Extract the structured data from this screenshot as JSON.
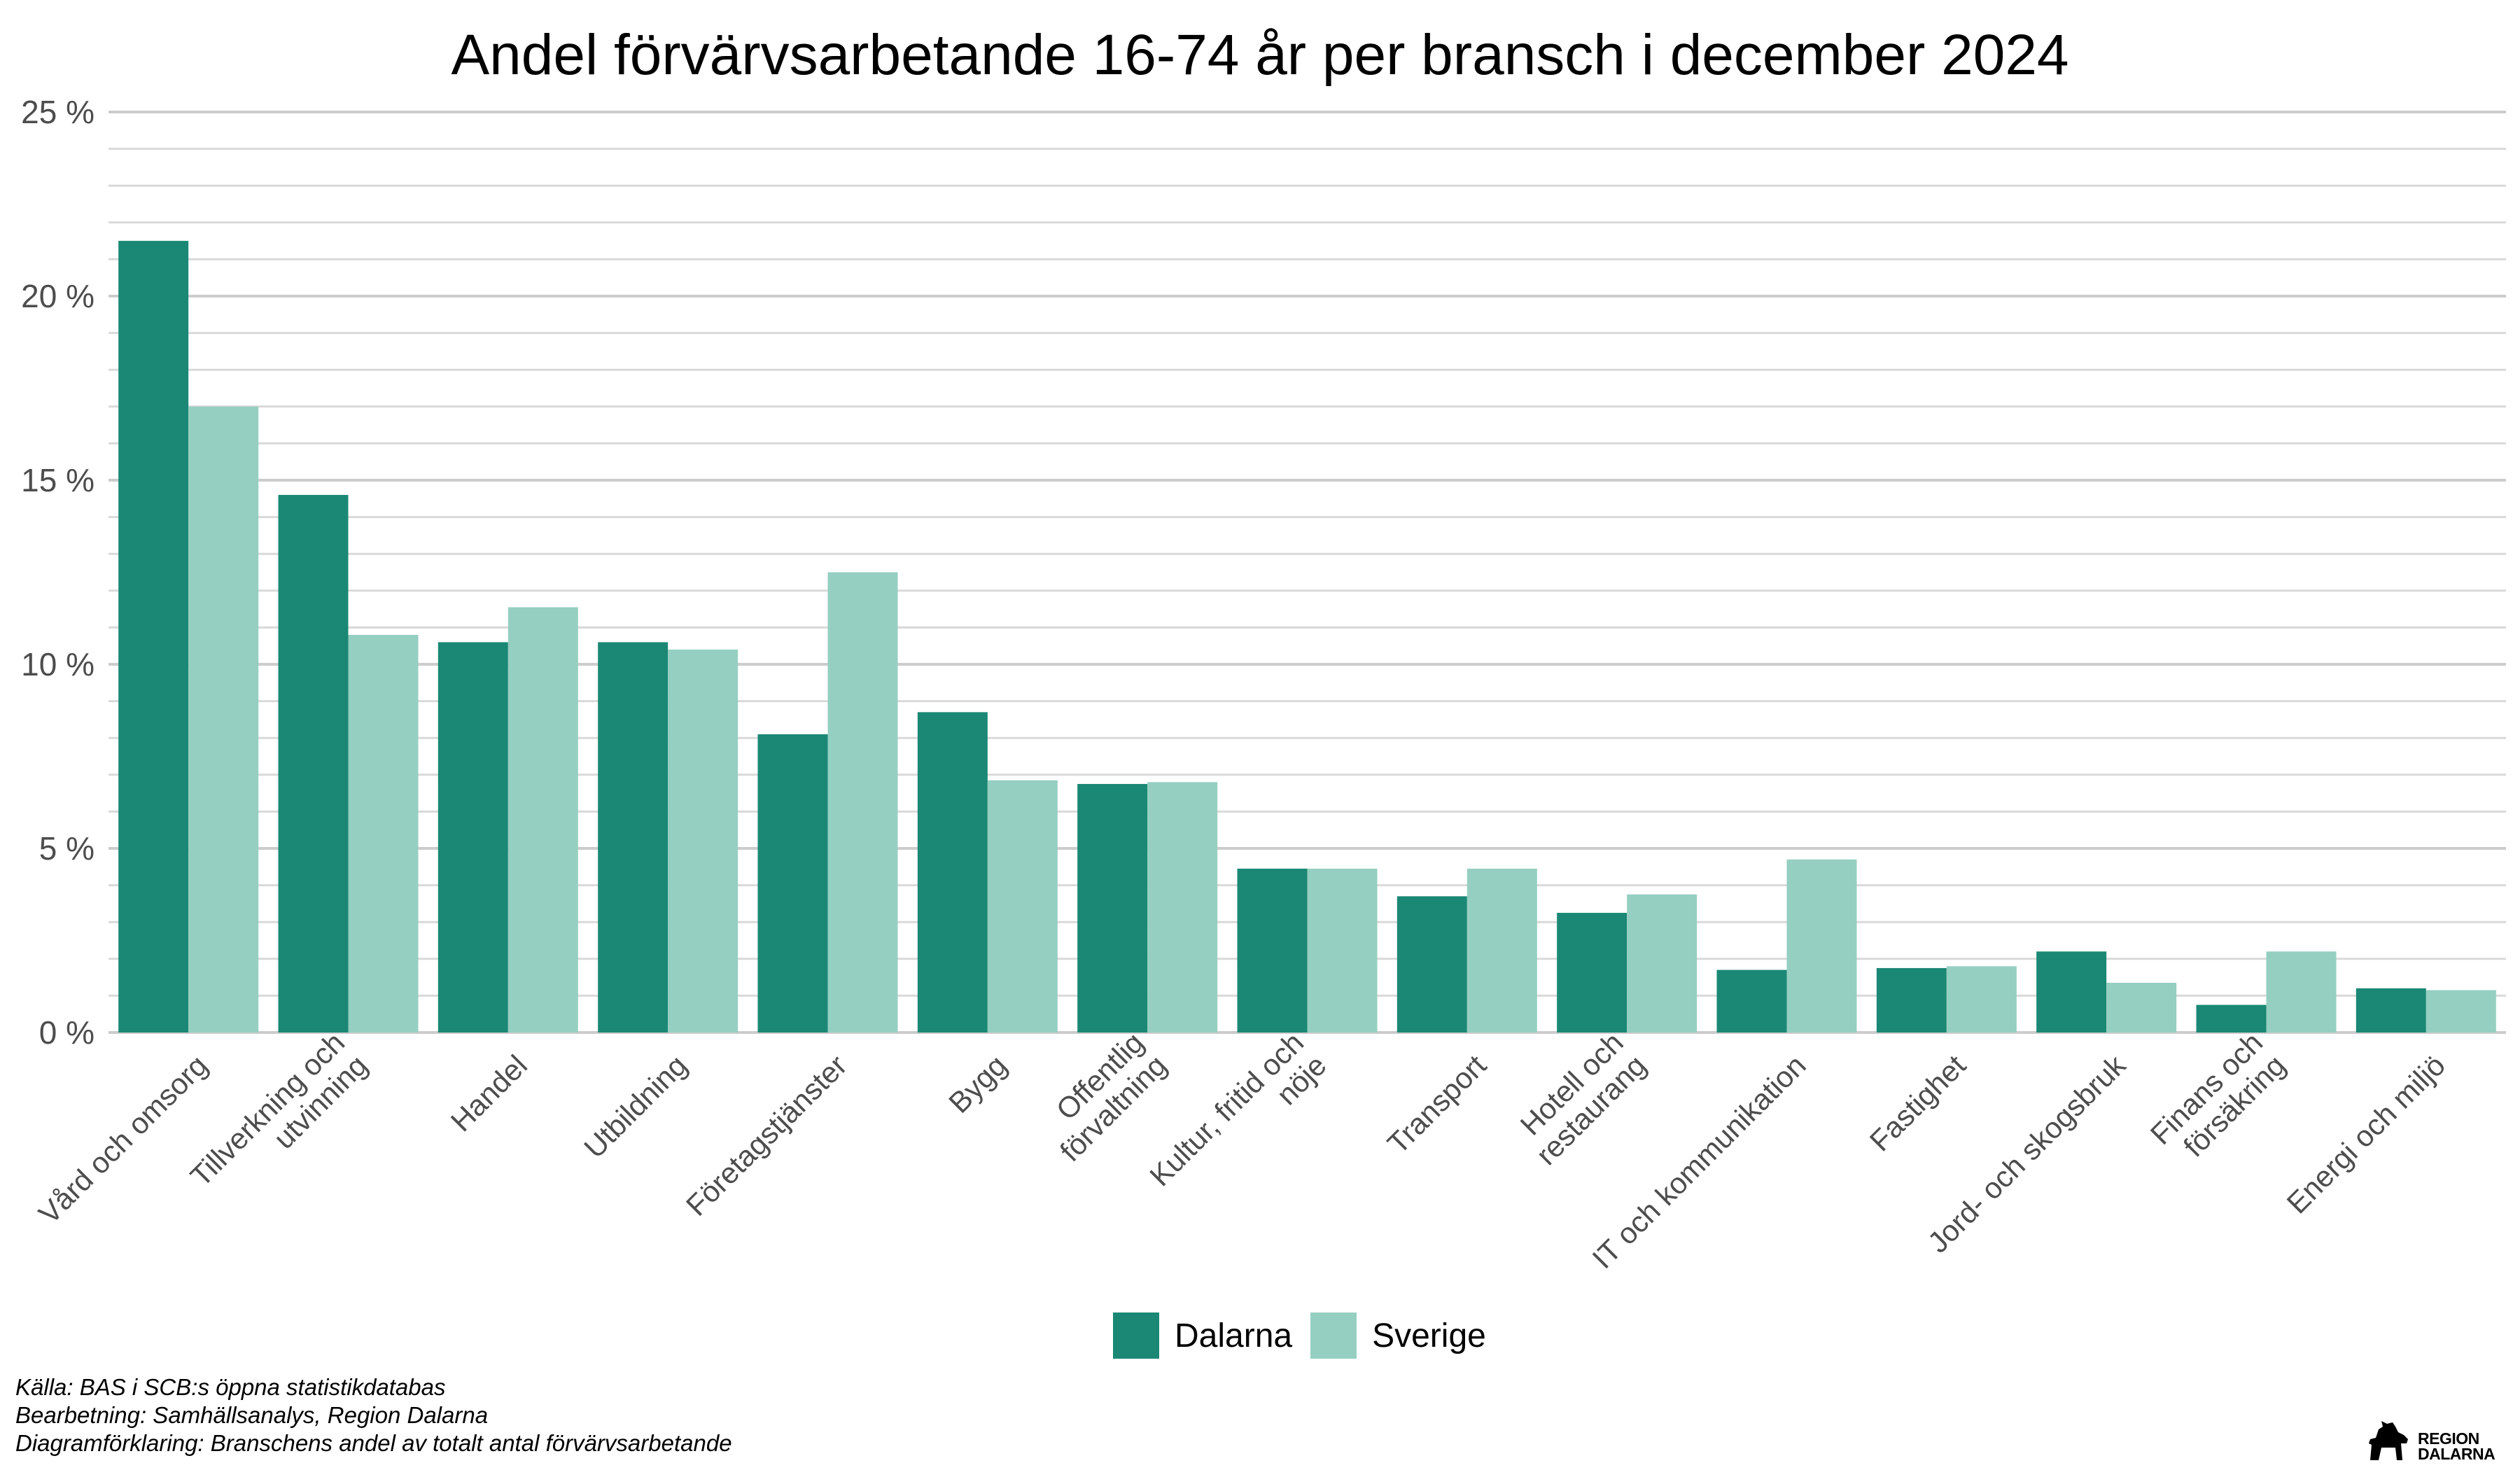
{
  "chart_data": {
    "type": "bar",
    "title": "Andel förvärvsarbetande 16-74 år per bransch i december 2024",
    "xlabel": "",
    "ylabel": "",
    "ylim": [
      0,
      25
    ],
    "yticks": [
      0,
      5,
      10,
      15,
      20,
      25
    ],
    "ytick_labels": [
      "0 %",
      "5 %",
      "10 %",
      "15 %",
      "20 %",
      "25 %"
    ],
    "grid": true,
    "legend_position": "bottom-center",
    "categories": [
      "Vård och omsorg",
      "Tillverkning och\nutvinning",
      "Handel",
      "Utbildning",
      "Företagstjänster",
      "Bygg",
      "Offentlig\nförvaltning",
      "Kultur, fritid och\nnöje",
      "Transport",
      "Hotell och\nrestaurang",
      "IT och kommunikation",
      "Fastighet",
      "Jord- och skogsbruk",
      "Finans och\nförsäkring",
      "Energi och miljö"
    ],
    "series": [
      {
        "name": "Dalarna",
        "color": "#1a8874",
        "values": [
          21.5,
          14.6,
          10.6,
          10.6,
          8.1,
          8.7,
          6.75,
          4.45,
          3.7,
          3.25,
          1.7,
          1.75,
          2.2,
          0.75,
          1.2
        ]
      },
      {
        "name": "Sverige",
        "color": "#95cfc1",
        "values": [
          17.0,
          10.8,
          11.55,
          10.4,
          12.5,
          6.85,
          6.8,
          4.45,
          4.45,
          3.75,
          4.7,
          1.8,
          1.35,
          2.2,
          1.15
        ]
      }
    ]
  },
  "footer": {
    "source": "Källa: BAS i SCB:s öppna statistikdatabas",
    "processing": "Bearbetning: Samhällsanalys, Region Dalarna",
    "explanation": "Diagramförklaring: Branschens andel av totalt antal förvärvsarbetande"
  },
  "logo": {
    "line1": "REGION",
    "line2": "DALARNA",
    "icon": "dala-horse-icon"
  },
  "colors": {
    "grid": "#d9d9d9",
    "grid_major": "#cccccc",
    "axis_text": "#4d4d4d"
  }
}
